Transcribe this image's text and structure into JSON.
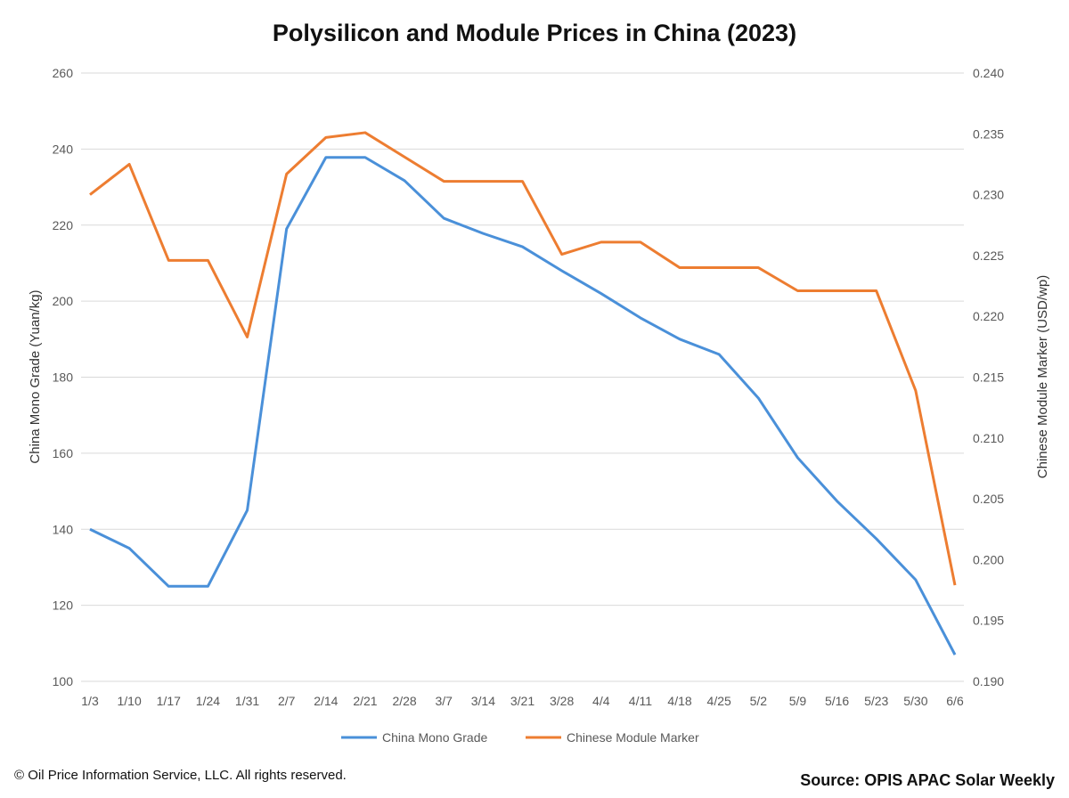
{
  "chart_data": {
    "type": "line",
    "title": "Polysilicon and Module Prices in China (2023)",
    "categories": [
      "1/3",
      "1/10",
      "1/17",
      "1/24",
      "1/31",
      "2/7",
      "2/14",
      "2/21",
      "2/28",
      "3/7",
      "3/14",
      "3/21",
      "3/28",
      "4/4",
      "4/11",
      "4/18",
      "4/25",
      "5/2",
      "5/9",
      "5/16",
      "5/23",
      "5/30",
      "6/6"
    ],
    "ylabel_left": "China Mono Grade (Yuan/kg)",
    "ylabel_right": "Chinese Module Marker (USD/wp)",
    "ylim_left": [
      100,
      260
    ],
    "yticks_left": [
      "100",
      "120",
      "140",
      "160",
      "180",
      "200",
      "220",
      "240",
      "260"
    ],
    "ylim_right": [
      0.19,
      0.24
    ],
    "yticks_right": [
      "0.190",
      "0.195",
      "0.200",
      "0.205",
      "0.210",
      "0.215",
      "0.220",
      "0.225",
      "0.230",
      "0.235",
      "0.240"
    ],
    "grid": true,
    "legend_position": "bottom",
    "series": [
      {
        "name": "China Mono Grade",
        "axis": "left",
        "color": "#4a90d9",
        "values": [
          140,
          135,
          125,
          125,
          145,
          219,
          237.8,
          237.8,
          231.7,
          221.8,
          217.8,
          214.3,
          208,
          202,
          195.6,
          190,
          186,
          174.5,
          158.8,
          147.4,
          137.5,
          126.7,
          107
        ]
      },
      {
        "name": "Chinese Module Marker",
        "axis": "right",
        "color": "#ed7d31",
        "values": [
          0.23,
          0.2325,
          0.2246,
          0.2246,
          0.2183,
          0.2317,
          0.2347,
          0.2351,
          0.2331,
          0.2311,
          0.2311,
          0.2311,
          0.2251,
          0.2261,
          0.2261,
          0.224,
          0.224,
          0.224,
          0.2221,
          0.2221,
          0.2221,
          0.2139,
          0.1979
        ]
      }
    ]
  },
  "footer": {
    "copyright": "© Oil Price Information Service, LLC.  All rights reserved.",
    "source": "Source: OPIS APAC Solar Weekly"
  }
}
